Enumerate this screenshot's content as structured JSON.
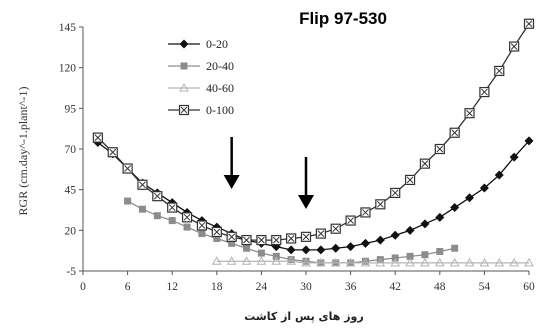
{
  "chart_data": {
    "type": "line",
    "title": "Flip 97-530",
    "xlabel": "روز های پس از کاشت",
    "ylabel": "RGR (cm.day^-1.plant^-1)",
    "xlim": [
      0,
      60
    ],
    "ylim": [
      -5,
      145
    ],
    "xticks": [
      "0",
      "6",
      "12",
      "18",
      "24",
      "30",
      "36",
      "42",
      "48",
      "54",
      "60"
    ],
    "yticks": [
      "-5",
      "20",
      "45",
      "70",
      "95",
      "120",
      "145"
    ],
    "grid": false,
    "legend_position": "top-left",
    "series": [
      {
        "name": "0-20",
        "color": "#111111",
        "marker": "diamond",
        "x": [
          2,
          4,
          6,
          8,
          10,
          12,
          14,
          16,
          18,
          20,
          22,
          24,
          26,
          28,
          30,
          32,
          34,
          36,
          38,
          40,
          42,
          44,
          46,
          48,
          50,
          52,
          54,
          56,
          58,
          60
        ],
        "y": [
          74,
          67,
          58,
          49,
          43,
          37,
          31,
          26,
          22,
          18,
          14,
          12,
          10,
          8,
          8,
          8,
          9,
          10,
          12,
          14,
          17,
          20,
          24,
          28,
          34,
          40,
          46,
          54,
          65,
          75
        ]
      },
      {
        "name": "20-40",
        "color": "#8c8c8c",
        "marker": "square",
        "x": [
          6,
          8,
          10,
          12,
          14,
          16,
          18,
          20,
          22,
          24,
          26,
          28,
          30,
          32,
          34,
          36,
          38,
          40,
          42,
          44,
          46,
          48,
          50
        ],
        "y": [
          38,
          33,
          29,
          26,
          22,
          18,
          15,
          12,
          9,
          6,
          4,
          2,
          1,
          0,
          0,
          0,
          1,
          2,
          3,
          4,
          5,
          7,
          9
        ]
      },
      {
        "name": "40-60",
        "color": "#b4b4b4",
        "marker": "triangle",
        "x": [
          18,
          20,
          22,
          24,
          26,
          28,
          30,
          32,
          34,
          36,
          38,
          40,
          42,
          44,
          46,
          48,
          50,
          52,
          54,
          56,
          58,
          60
        ],
        "y": [
          1,
          1,
          1,
          1,
          1,
          1,
          0,
          0,
          0,
          0,
          0,
          0,
          0,
          0,
          0,
          0,
          0,
          0,
          0,
          0,
          0,
          0
        ]
      },
      {
        "name": "0-100",
        "color": "#333333",
        "marker": "boxed-x",
        "x": [
          2,
          4,
          6,
          8,
          10,
          12,
          14,
          16,
          18,
          20,
          22,
          24,
          26,
          28,
          30,
          32,
          34,
          36,
          38,
          40,
          42,
          44,
          46,
          48,
          50,
          52,
          54,
          56,
          58,
          60
        ],
        "y": [
          77,
          68,
          58,
          48,
          41,
          34,
          28,
          23,
          19,
          16,
          14,
          14,
          14,
          15,
          16,
          18,
          21,
          26,
          31,
          36,
          43,
          51,
          61,
          70,
          80,
          92,
          105,
          118,
          133,
          147
        ]
      }
    ],
    "annotations": [
      {
        "type": "arrow-down",
        "x": 20
      },
      {
        "type": "arrow-down",
        "x": 30
      }
    ]
  }
}
